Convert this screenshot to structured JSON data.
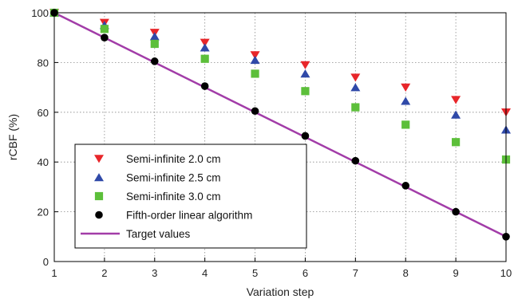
{
  "chart_data": {
    "type": "scatter",
    "xlabel": "Variation step",
    "ylabel": "rCBF (%)",
    "xlim": [
      1,
      10
    ],
    "ylim": [
      0,
      100
    ],
    "xticks": [
      1,
      2,
      3,
      4,
      5,
      6,
      7,
      8,
      9,
      10
    ],
    "yticks": [
      0,
      20,
      40,
      60,
      80,
      100
    ],
    "grid": true,
    "legend_position": "bottom-left",
    "series": [
      {
        "name": "Semi-infinite 2.0 cm",
        "marker": "triangle-down",
        "color": "#e8262a",
        "x": [
          1,
          2,
          3,
          4,
          5,
          6,
          7,
          8,
          9,
          10
        ],
        "y": [
          100,
          96,
          92,
          88,
          83,
          79,
          74,
          70,
          65,
          60
        ]
      },
      {
        "name": "Semi-infinite 2.5 cm",
        "marker": "triangle-up",
        "color": "#2f49a8",
        "x": [
          1,
          2,
          3,
          4,
          5,
          6,
          7,
          8,
          9,
          10
        ],
        "y": [
          100,
          95,
          90.5,
          86,
          81,
          75.5,
          70,
          64.5,
          59,
          53
        ]
      },
      {
        "name": "Semi-infinite 3.0 cm",
        "marker": "square",
        "color": "#5cbf3a",
        "x": [
          1,
          2,
          3,
          4,
          5,
          6,
          7,
          8,
          9,
          10
        ],
        "y": [
          100,
          93.5,
          87.5,
          81.5,
          75.5,
          68.5,
          62,
          55,
          48,
          41
        ]
      },
      {
        "name": "Fifth-order linear algorithm",
        "marker": "circle",
        "color": "#000000",
        "x": [
          1,
          2,
          3,
          4,
          5,
          6,
          7,
          8,
          9,
          10
        ],
        "y": [
          100,
          90,
          80.5,
          70.5,
          60.5,
          50.5,
          40.5,
          30.5,
          20,
          10
        ]
      },
      {
        "name": "Target values",
        "marker": "line",
        "color": "#a23ca8",
        "x": [
          1,
          10
        ],
        "y": [
          100,
          10
        ]
      }
    ]
  }
}
